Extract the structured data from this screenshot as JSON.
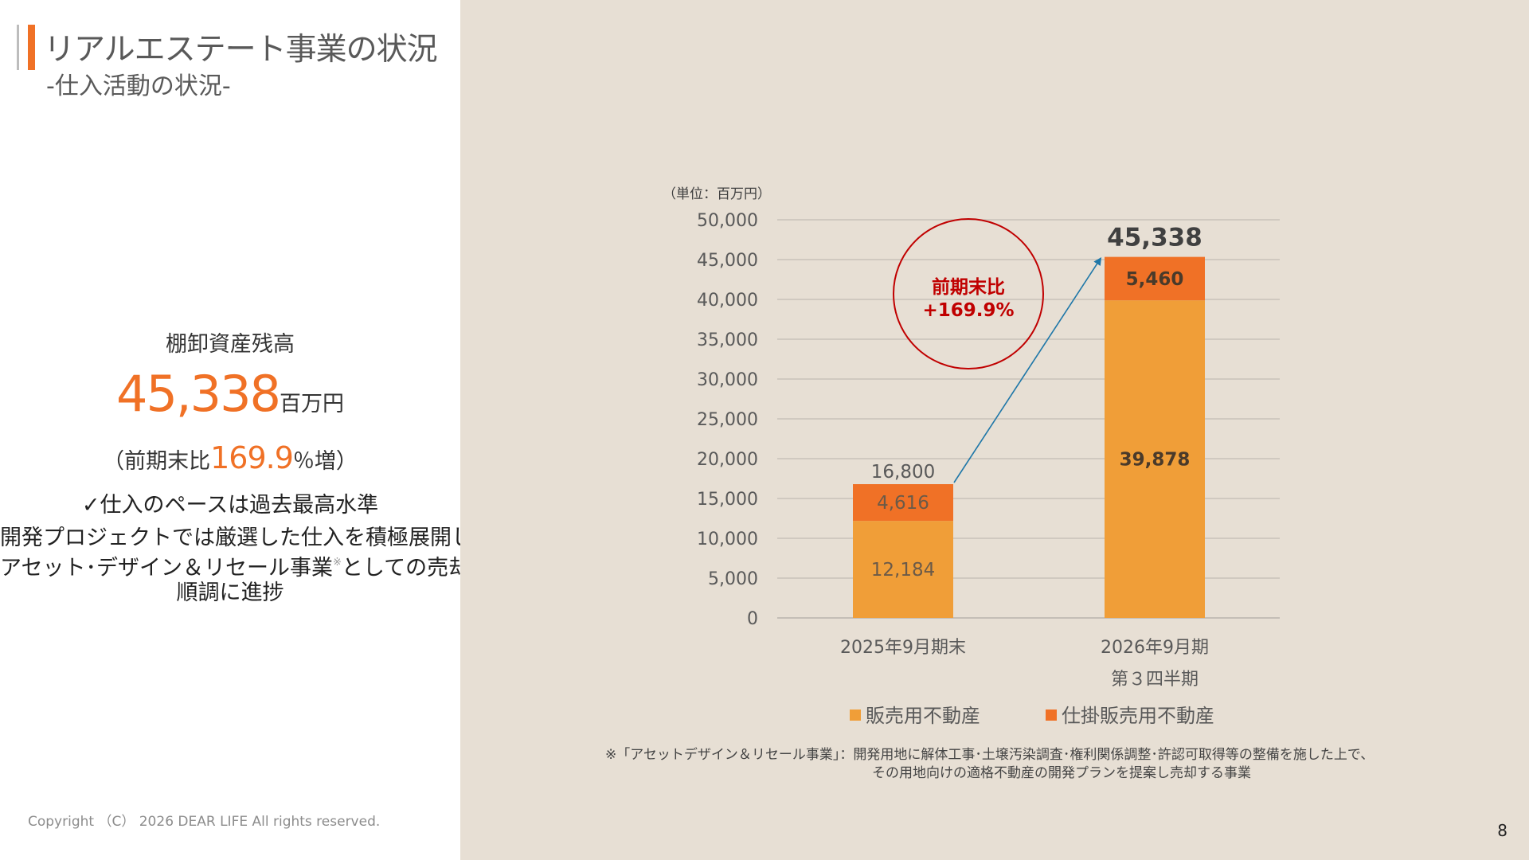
{
  "header": {
    "title": "リアルエステート事業の状況",
    "subtitle": "-仕入活動の状況-"
  },
  "kpi": {
    "label": "棚卸資産残高",
    "value": "45,338",
    "unit": "百万円",
    "growth_prefix": "（前期末比",
    "growth_value": "169.9",
    "growth_suffix": "％増）",
    "check": "✓仕入のペースは過去最高水準",
    "desc_line1": "開発プロジェクトでは厳選した仕入を積極展開しつつ",
    "desc_line2a": "アセット･デザイン＆リセール事業",
    "desc_mark": "※",
    "desc_line2b": "としての売却も",
    "desc_line3": "順調に進捗"
  },
  "footer": {
    "copyright": "Copyright （C） 2026 DEAR LIFE All rights reserved.",
    "page_number": "8"
  },
  "footnote": {
    "line1": "※「アセットデザイン＆リセール事業」：開発用地に解体工事･土壌汚染調査･権利関係調整･許認可取得等の整備を施した上で、",
    "line2": "その用地向けの適格不動産の開発プランを提案し売却する事業"
  },
  "colors": {
    "accent": "#f07126",
    "series_main": "#f09e38",
    "series_wip": "#f07126",
    "highlight_red": "#c00000",
    "arrow_blue": "#1f77a8",
    "panel_bg": "#e7dfd4"
  },
  "chart_data": {
    "type": "bar",
    "stacked": true,
    "unit_label": "（単位：百万円）",
    "categories": [
      [
        "2025年9月期末"
      ],
      [
        "2026年9月期",
        "第３四半期"
      ]
    ],
    "series": [
      {
        "name": "販売用不動産",
        "values": [
          12184,
          39878
        ]
      },
      {
        "name": "仕掛販売用不動産",
        "values": [
          4616,
          5460
        ]
      }
    ],
    "totals": [
      16800,
      45338
    ],
    "value_labels": [
      [
        "12,184",
        "4,616"
      ],
      [
        "39,878",
        "5,460"
      ]
    ],
    "total_labels": [
      "16,800",
      "45,338"
    ],
    "ylim": [
      0,
      50000
    ],
    "yticks": [
      0,
      5000,
      10000,
      15000,
      20000,
      25000,
      30000,
      35000,
      40000,
      45000,
      50000
    ],
    "ytick_labels": [
      "0",
      "5,000",
      "10,000",
      "15,000",
      "20,000",
      "25,000",
      "30,000",
      "35,000",
      "40,000",
      "45,000",
      "50,000"
    ],
    "grid": true,
    "legend_position": "bottom",
    "annotation": {
      "line1": "前期末比",
      "line2": "+169.9%"
    }
  }
}
